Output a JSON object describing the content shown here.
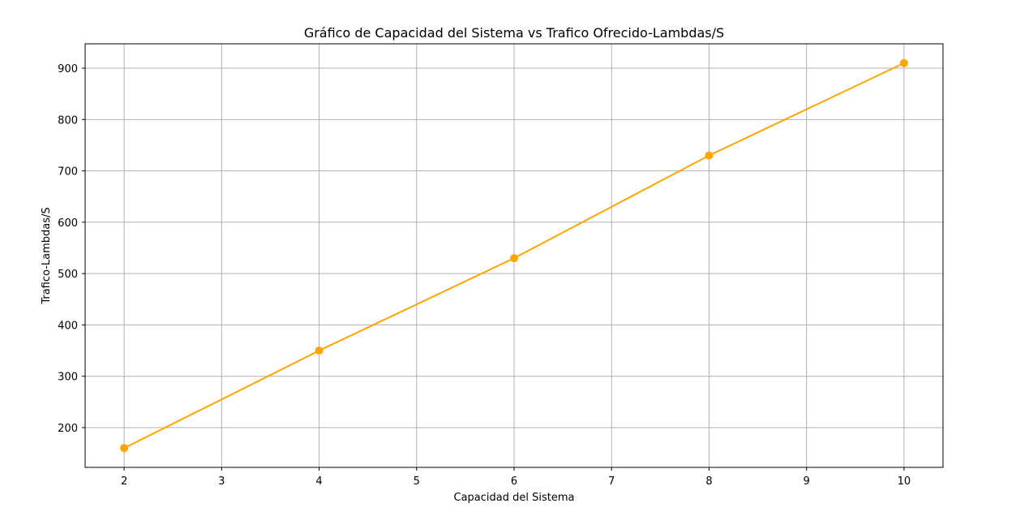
{
  "chart_data": {
    "type": "line",
    "title": "Gráfico de Capacidad del Sistema vs Trafico Ofrecido-Lambdas/S",
    "xlabel": "Capacidad del Sistema",
    "ylabel": "Trafico-Lambdas/S",
    "x": [
      2,
      4,
      6,
      8,
      10
    ],
    "series": [
      {
        "values": [
          160,
          350,
          530,
          730,
          910
        ],
        "color": "#FFA500",
        "marker": "circle"
      }
    ],
    "xlim": [
      1.6,
      10.4
    ],
    "ylim": [
      122.5,
      947.5
    ],
    "xticks": [
      2,
      3,
      4,
      5,
      6,
      7,
      8,
      9,
      10
    ],
    "yticks": [
      200,
      300,
      400,
      500,
      600,
      700,
      800,
      900
    ],
    "grid": true,
    "legend": "none"
  }
}
